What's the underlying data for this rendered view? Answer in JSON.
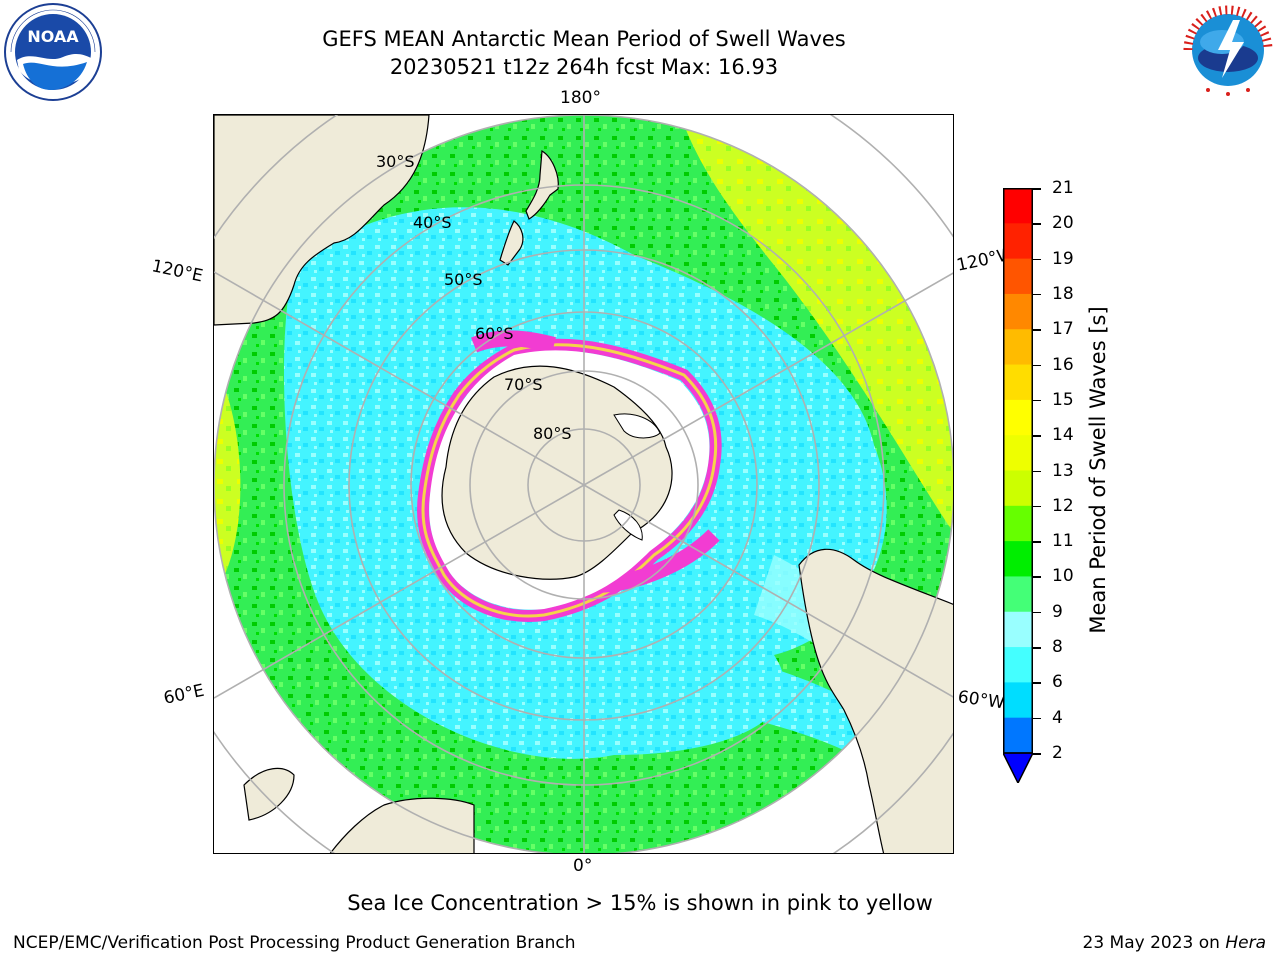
{
  "title": {
    "line1": "GEFS MEAN Antarctic Mean Period of Swell Waves",
    "line2": "20230521 t12z 264h fcst   Max: 16.93"
  },
  "logos": {
    "left": "noaa-logo",
    "right": "national-weather-service-logo",
    "right_text": "NATIONAL WEATHER SERVICE"
  },
  "map": {
    "projection": "south-polar-stereographic",
    "longitude_labels": {
      "top": "180°",
      "bottom": "0°",
      "upper_left": "120°E",
      "upper_right": "120°W",
      "lower_left": "60°E",
      "lower_right": "60°W"
    },
    "latitude_labels": [
      "30°S",
      "40°S",
      "50°S",
      "60°S",
      "70°S",
      "80°S"
    ],
    "colors": {
      "land": "#efebd9",
      "ice_edge_pink": "#f23cd2",
      "ice_edge_yellow": "#f4d44a",
      "grid": "#b0b0b0"
    }
  },
  "colorbar": {
    "label": "Mean Period of Swell Waves [s]",
    "ticks": [
      "2",
      "4",
      "6",
      "8",
      "9",
      "10",
      "11",
      "12",
      "13",
      "14",
      "15",
      "16",
      "17",
      "18",
      "19",
      "20",
      "21"
    ],
    "colors": [
      "#0000ff",
      "#0077ff",
      "#00ddff",
      "#44ffff",
      "#99ffff",
      "#44ff77",
      "#00ee00",
      "#66ff00",
      "#ccff00",
      "#eeff00",
      "#ffff00",
      "#ffdd00",
      "#ffbb00",
      "#ff8800",
      "#ff5500",
      "#ff2200",
      "#ff0000"
    ]
  },
  "footer": {
    "note": "Sea Ice Concentration > 15% is shown in pink to yellow",
    "credit_left": "NCEP/EMC/Verification Post Processing Product Generation Branch",
    "credit_date": "23 May 2023 on ",
    "credit_host": "Hera"
  }
}
